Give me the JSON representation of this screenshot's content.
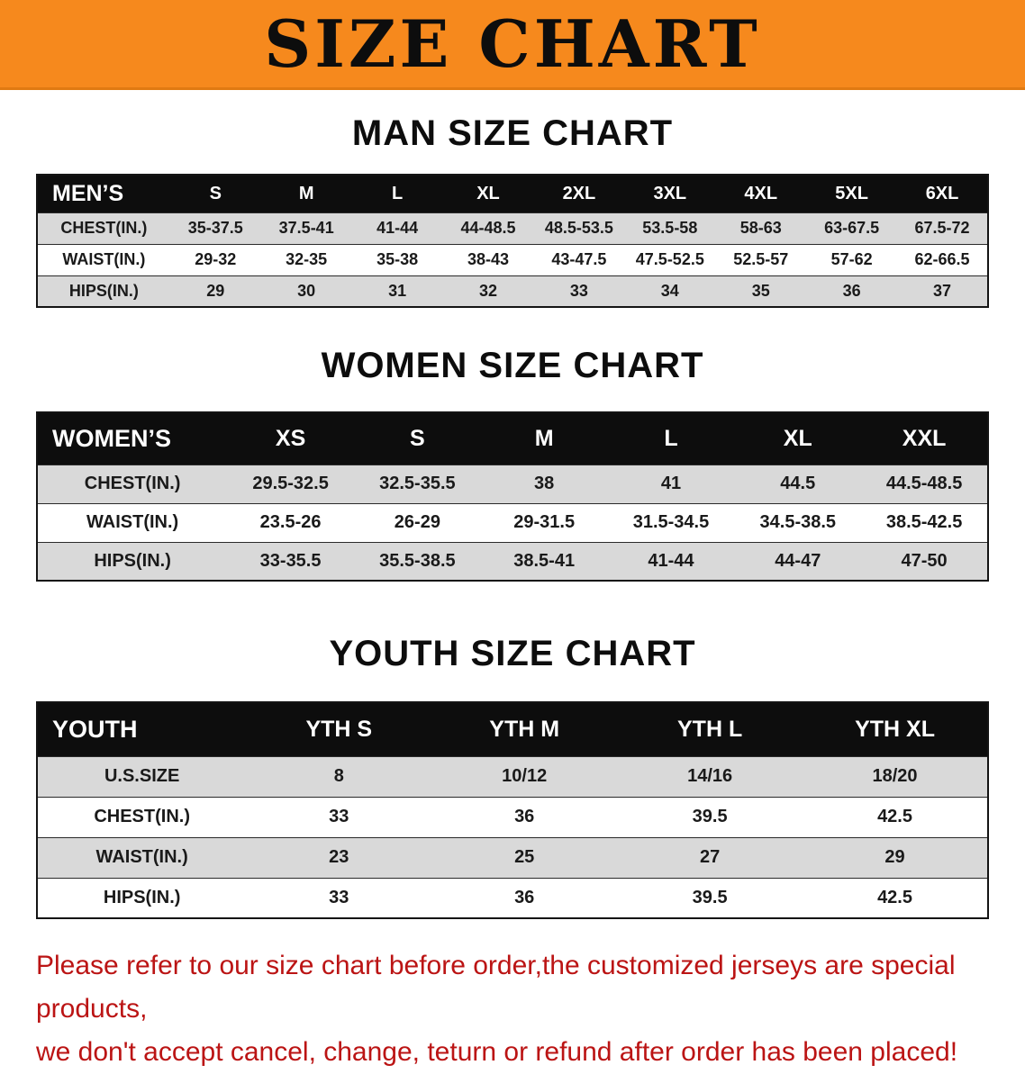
{
  "banner": {
    "title": "SIZE CHART",
    "bg_color": "#f6891d"
  },
  "sections": [
    {
      "heading": "MAN SIZE CHART",
      "table": {
        "header": [
          "MEN’S",
          "S",
          "M",
          "L",
          "XL",
          "2XL",
          "3XL",
          "4XL",
          "5XL",
          "6XL"
        ],
        "rows": [
          {
            "label": "CHEST(IN.)",
            "values": [
              "35-37.5",
              "37.5-41",
              "41-44",
              "44-48.5",
              "48.5-53.5",
              "53.5-58",
              "58-63",
              "63-67.5",
              "67.5-72"
            ]
          },
          {
            "label": "WAIST(IN.)",
            "values": [
              "29-32",
              "32-35",
              "35-38",
              "38-43",
              "43-47.5",
              "47.5-52.5",
              "52.5-57",
              "57-62",
              "62-66.5"
            ]
          },
          {
            "label": "HIPS(IN.)",
            "values": [
              "29",
              "30",
              "31",
              "32",
              "33",
              "34",
              "35",
              "36",
              "37"
            ]
          }
        ]
      }
    },
    {
      "heading": "WOMEN SIZE CHART",
      "table": {
        "header": [
          "WOMEN’S",
          "XS",
          "S",
          "M",
          "L",
          "XL",
          "XXL"
        ],
        "rows": [
          {
            "label": "CHEST(IN.)",
            "values": [
              "29.5-32.5",
              "32.5-35.5",
              "38",
              "41",
              "44.5",
              "44.5-48.5"
            ]
          },
          {
            "label": "WAIST(IN.)",
            "values": [
              "23.5-26",
              "26-29",
              "29-31.5",
              "31.5-34.5",
              "34.5-38.5",
              "38.5-42.5"
            ]
          },
          {
            "label": "HIPS(IN.)",
            "values": [
              "33-35.5",
              "35.5-38.5",
              "38.5-41",
              "41-44",
              "44-47",
              "47-50"
            ]
          }
        ]
      }
    },
    {
      "heading": "YOUTH SIZE CHART",
      "table": {
        "header": [
          "YOUTH",
          "YTH S",
          "YTH M",
          "YTH L",
          "YTH XL"
        ],
        "rows": [
          {
            "label": "U.S.SIZE",
            "values": [
              "8",
              "10/12",
              "14/16",
              "18/20"
            ]
          },
          {
            "label": "CHEST(IN.)",
            "values": [
              "33",
              "36",
              "39.5",
              "42.5"
            ]
          },
          {
            "label": "WAIST(IN.)",
            "values": [
              "23",
              "25",
              "27",
              "29"
            ]
          },
          {
            "label": "HIPS(IN.)",
            "values": [
              "33",
              "36",
              "39.5",
              "42.5"
            ]
          }
        ]
      }
    }
  ],
  "footer": {
    "line1": "Please refer to our size chart before order,the customized jerseys are special products,",
    "line2": "we don't accept cancel, change, teturn or refund after order has been placed!",
    "color": "#bb1414"
  }
}
